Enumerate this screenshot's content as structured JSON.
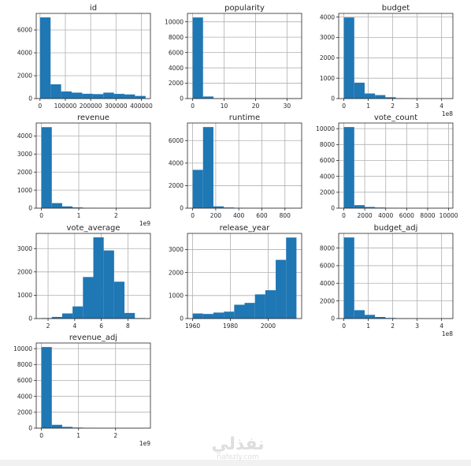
{
  "chart_data": [
    {
      "type": "histogram",
      "title": "id",
      "bin_edges": [
        5,
        41671,
        83337,
        125003,
        166669,
        208335,
        250001,
        291667,
        333333,
        374999,
        416665
      ],
      "counts": [
        7100,
        1250,
        620,
        520,
        420,
        390,
        520,
        410,
        360,
        230
      ],
      "xticks": [
        0,
        100000,
        200000,
        300000,
        400000
      ],
      "xtick_labels": [
        "0",
        "100000",
        "200000",
        "300000",
        "400000"
      ],
      "xlim": [
        -15000,
        436000
      ],
      "yticks": [
        0,
        2000,
        4000,
        6000
      ],
      "ylim": [
        0,
        7450
      ],
      "grid": true,
      "color": "#1f77b4"
    },
    {
      "type": "histogram",
      "title": "popularity",
      "bin_edges": [
        0,
        3.3,
        6.6,
        9.9,
        13.2,
        16.5,
        19.8,
        23.1,
        26.4,
        29.7,
        33
      ],
      "counts": [
        10570,
        270,
        40,
        15,
        8,
        6,
        4,
        3,
        2,
        2
      ],
      "xticks": [
        0,
        10,
        20,
        30
      ],
      "xtick_labels": [
        "0",
        "10",
        "20",
        "30"
      ],
      "xlim": [
        -1.65,
        34.65
      ],
      "yticks": [
        0,
        2000,
        4000,
        6000,
        8000,
        10000
      ],
      "ylim": [
        0,
        11100
      ],
      "grid": true,
      "color": "#1f77b4"
    },
    {
      "type": "histogram",
      "title": "budget",
      "bin_edges": [
        0,
        42500000,
        85000000,
        127500000,
        170000000,
        212500000,
        255000000,
        297500000,
        340000000,
        382500000,
        425000000
      ],
      "counts": [
        3980,
        780,
        250,
        170,
        65,
        20,
        8,
        3,
        2,
        1
      ],
      "xticks": [
        0,
        100000000,
        200000000,
        300000000,
        400000000
      ],
      "xtick_labels": [
        "0",
        "1",
        "2",
        "3",
        "4"
      ],
      "offset_label": "1e8",
      "xlim": [
        -21250000,
        446250000
      ],
      "yticks": [
        0,
        1000,
        2000,
        3000,
        4000
      ],
      "ylim": [
        0,
        4180
      ],
      "grid": true,
      "color": "#1f77b4"
    },
    {
      "type": "histogram",
      "title": "revenue",
      "bin_edges": [
        0,
        278000000,
        556000000,
        834000000,
        1112000000,
        1390000000,
        1668000000,
        1946000000,
        2224000000,
        2502000000,
        2780000000
      ],
      "counts": [
        4490,
        280,
        100,
        40,
        15,
        8,
        4,
        2,
        1,
        1
      ],
      "xticks": [
        0,
        1000000000,
        2000000000
      ],
      "xtick_labels": [
        "0",
        "1",
        "2"
      ],
      "offset_label": "1e9",
      "xlim": [
        -139000000,
        2919000000
      ],
      "yticks": [
        0,
        1000,
        2000,
        3000,
        4000
      ],
      "ylim": [
        0,
        4720
      ],
      "grid": true,
      "color": "#1f77b4"
    },
    {
      "type": "histogram",
      "title": "runtime",
      "bin_edges": [
        0,
        90,
        180,
        270,
        360,
        450,
        540,
        630,
        720,
        810,
        900
      ],
      "counts": [
        3400,
        7200,
        160,
        60,
        25,
        10,
        8,
        5,
        3,
        2
      ],
      "xticks": [
        0,
        200,
        400,
        600,
        800
      ],
      "xtick_labels": [
        "0",
        "200",
        "400",
        "600",
        "800"
      ],
      "xlim": [
        -45,
        945
      ],
      "yticks": [
        0,
        2000,
        4000,
        6000
      ],
      "ylim": [
        0,
        7560
      ],
      "grid": true,
      "color": "#1f77b4"
    },
    {
      "type": "histogram",
      "title": "vote_count",
      "bin_edges": [
        10,
        1000,
        1990,
        2980,
        3970,
        4960,
        5950,
        6940,
        7930,
        8920,
        9910
      ],
      "counts": [
        10200,
        380,
        150,
        80,
        40,
        15,
        8,
        4,
        2,
        2
      ],
      "xticks": [
        0,
        2000,
        4000,
        6000,
        8000,
        10000
      ],
      "xtick_labels": [
        "0",
        "2000",
        "4000",
        "6000",
        "8000",
        "10000"
      ],
      "xlim": [
        -485,
        10405
      ],
      "yticks": [
        0,
        2000,
        4000,
        6000,
        8000,
        10000
      ],
      "ylim": [
        0,
        10710
      ],
      "grid": true,
      "color": "#1f77b4"
    },
    {
      "type": "histogram",
      "title": "vote_average",
      "bin_edges": [
        1.5,
        2.28,
        3.06,
        3.84,
        4.62,
        5.4,
        6.18,
        6.96,
        7.74,
        8.52,
        9.3
      ],
      "counts": [
        20,
        70,
        220,
        520,
        1780,
        3480,
        2920,
        1580,
        240,
        20
      ],
      "xticks": [
        2,
        4,
        6,
        8
      ],
      "xtick_labels": [
        "2",
        "4",
        "6",
        "8"
      ],
      "xlim": [
        1.11,
        9.69
      ],
      "yticks": [
        0,
        1000,
        2000,
        3000
      ],
      "ylim": [
        0,
        3650
      ],
      "grid": true,
      "color": "#1f77b4"
    },
    {
      "type": "histogram",
      "title": "release_year",
      "bin_edges": [
        1960,
        1965.5,
        1971,
        1976.5,
        1982,
        1987.5,
        1993,
        1998.5,
        2004,
        2009.5,
        2015
      ],
      "counts": [
        220,
        200,
        260,
        300,
        600,
        680,
        1050,
        1230,
        2550,
        3520
      ],
      "xticks": [
        1960,
        1980,
        2000
      ],
      "xtick_labels": [
        "1960",
        "1980",
        "2000"
      ],
      "xlim": [
        1957.25,
        2017.75
      ],
      "yticks": [
        0,
        1000,
        2000,
        3000
      ],
      "ylim": [
        0,
        3700
      ],
      "grid": true,
      "color": "#1f77b4"
    },
    {
      "type": "histogram",
      "title": "budget_adj",
      "bin_edges": [
        0,
        42500000,
        85000000,
        127500000,
        170000000,
        212500000,
        255000000,
        297500000,
        340000000,
        382500000,
        425000000
      ],
      "counts": [
        9200,
        950,
        420,
        180,
        70,
        25,
        10,
        5,
        2,
        1
      ],
      "xticks": [
        0,
        100000000,
        200000000,
        300000000,
        400000000
      ],
      "xtick_labels": [
        "0",
        "1",
        "2",
        "3",
        "4"
      ],
      "offset_label": "1e8",
      "xlim": [
        -21250000,
        446250000
      ],
      "yticks": [
        0,
        2000,
        4000,
        6000,
        8000
      ],
      "ylim": [
        0,
        9660
      ],
      "grid": true,
      "color": "#1f77b4"
    },
    {
      "type": "histogram",
      "title": "revenue_adj",
      "bin_edges": [
        0,
        280000000,
        560000000,
        840000000,
        1120000000,
        1400000000,
        1680000000,
        1960000000,
        2240000000,
        2520000000,
        2800000000
      ],
      "counts": [
        10200,
        420,
        160,
        70,
        25,
        10,
        5,
        2,
        1,
        1
      ],
      "xticks": [
        0,
        1000000000,
        2000000000
      ],
      "xtick_labels": [
        "0",
        "1",
        "2"
      ],
      "offset_label": "1e9",
      "xlim": [
        -140000000,
        2940000000
      ],
      "yticks": [
        0,
        2000,
        4000,
        6000,
        8000,
        10000
      ],
      "ylim": [
        0,
        10710
      ],
      "grid": true,
      "color": "#1f77b4"
    }
  ],
  "watermark": {
    "arabic": "نفذلي",
    "latin": "nafezly.com"
  }
}
